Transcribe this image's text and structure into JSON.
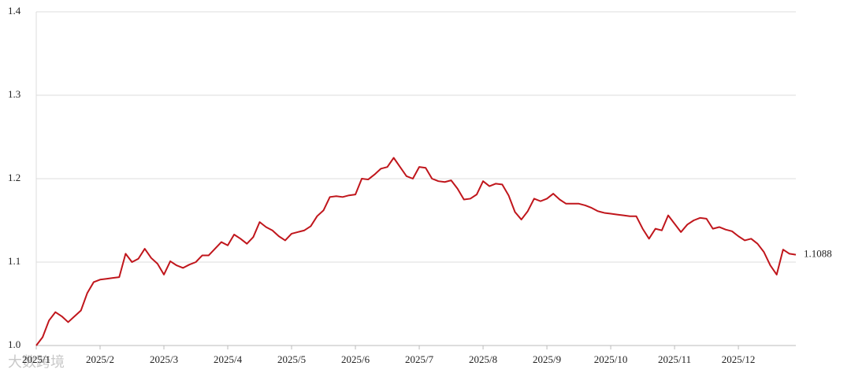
{
  "chart_data": {
    "type": "line",
    "categories": [
      "2025/1",
      null,
      null,
      null,
      null,
      null,
      null,
      null,
      null,
      null,
      "2025/2",
      null,
      null,
      null,
      null,
      null,
      null,
      null,
      null,
      null,
      "2025/3",
      null,
      null,
      null,
      null,
      null,
      null,
      null,
      null,
      null,
      "2025/4",
      null,
      null,
      null,
      null,
      null,
      null,
      null,
      null,
      null,
      "2025/5",
      null,
      null,
      null,
      null,
      null,
      null,
      null,
      null,
      null,
      "2025/6",
      null,
      null,
      null,
      null,
      null,
      null,
      null,
      null,
      null,
      "2025/7",
      null,
      null,
      null,
      null,
      null,
      null,
      null,
      null,
      null,
      "2025/8",
      null,
      null,
      null,
      null,
      null,
      null,
      null,
      null,
      null,
      "2025/9",
      null,
      null,
      null,
      null,
      null,
      null,
      null,
      null,
      null,
      "2025/10",
      null,
      null,
      null,
      null,
      null,
      null,
      null,
      null,
      null,
      "2025/11",
      null,
      null,
      null,
      null,
      null,
      null,
      null,
      null,
      null,
      "2025/12",
      null,
      null,
      null,
      null,
      null,
      null,
      null,
      null,
      null
    ],
    "values": [
      1.0,
      1.01,
      1.03,
      1.04,
      1.035,
      1.028,
      1.035,
      1.042,
      1.063,
      1.076,
      1.079,
      1.08,
      1.081,
      1.082,
      1.11,
      1.1,
      1.104,
      1.116,
      1.105,
      1.098,
      1.085,
      1.101,
      1.096,
      1.093,
      1.097,
      1.1,
      1.108,
      1.108,
      1.116,
      1.124,
      1.12,
      1.133,
      1.128,
      1.122,
      1.13,
      1.148,
      1.142,
      1.138,
      1.131,
      1.126,
      1.134,
      1.136,
      1.138,
      1.143,
      1.155,
      1.162,
      1.178,
      1.179,
      1.178,
      1.18,
      1.181,
      1.2,
      1.199,
      1.205,
      1.212,
      1.214,
      1.225,
      1.214,
      1.203,
      1.2,
      1.214,
      1.213,
      1.2,
      1.197,
      1.196,
      1.198,
      1.188,
      1.175,
      1.176,
      1.181,
      1.197,
      1.191,
      1.194,
      1.193,
      1.18,
      1.16,
      1.151,
      1.161,
      1.176,
      1.173,
      1.176,
      1.182,
      1.175,
      1.17,
      1.17,
      1.17,
      1.168,
      1.165,
      1.161,
      1.159,
      1.158,
      1.157,
      1.156,
      1.155,
      1.155,
      1.14,
      1.128,
      1.14,
      1.138,
      1.156,
      1.146,
      1.136,
      1.145,
      1.15,
      1.153,
      1.152,
      1.14,
      1.142,
      1.139,
      1.137,
      1.131,
      1.126,
      1.128,
      1.122,
      1.112,
      1.096,
      1.085,
      1.115,
      1.11,
      1.1088
    ],
    "color": "#c0161c",
    "end_label": "1.1088",
    "ylim": [
      1.0,
      1.4
    ],
    "yticks": [
      {
        "value": 1.0,
        "label": "1.0"
      },
      1.1,
      1.2,
      1.3,
      1.4
    ],
    "grid": true,
    "watermark": "大数跨境"
  }
}
